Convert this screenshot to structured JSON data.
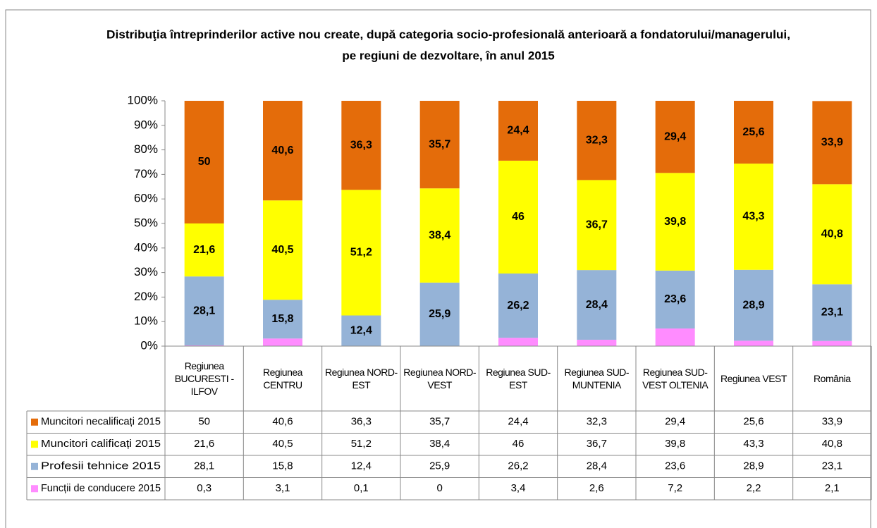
{
  "chart_data": {
    "type": "stacked_bar",
    "title": "Distribuţia întreprinderilor active nou create, după categoria socio-profesională anterioară a fondatorului/managerului,",
    "subtitle": "pe regiuni de dezvoltare, în anul 2015",
    "categories": [
      "Regiunea BUCURESTI - ILFOV",
      "Regiunea CENTRU",
      "Regiunea NORD-EST",
      "Regiunea NORD-VEST",
      "Regiunea SUD-EST",
      "Regiunea SUD-MUNTENIA",
      "Regiunea SUD-VEST OLTENIA",
      "Regiunea VEST",
      "România"
    ],
    "series": [
      {
        "name": "Muncitori necalificați 2015",
        "color": "#e46c0a",
        "values": [
          50,
          40.6,
          36.3,
          35.7,
          24.4,
          32.3,
          29.4,
          25.6,
          33.9
        ],
        "value_labels": [
          "50",
          "40,6",
          "36,3",
          "35,7",
          "24,4",
          "32,3",
          "29,4",
          "25,6",
          "33,9"
        ]
      },
      {
        "name": "Muncitori calificați 2015",
        "color": "#ffff00",
        "values": [
          21.6,
          40.5,
          51.2,
          38.4,
          46,
          36.7,
          39.8,
          43.3,
          40.8
        ],
        "value_labels": [
          "21,6",
          "40,5",
          "51,2",
          "38,4",
          "46",
          "36,7",
          "39,8",
          "43,3",
          "40,8"
        ]
      },
      {
        "name": "Profesii tehnice 2015",
        "color": "#95b3d7",
        "values": [
          28.1,
          15.8,
          12.4,
          25.9,
          26.2,
          28.4,
          23.6,
          28.9,
          23.1
        ],
        "value_labels": [
          "28,1",
          "15,8",
          "12,4",
          "25,9",
          "26,2",
          "28,4",
          "23,6",
          "28,9",
          "23,1"
        ]
      },
      {
        "name": "Funcții de conducere 2015",
        "color": "#ff8cff",
        "values": [
          0.3,
          3.1,
          0.1,
          0,
          3.4,
          2.6,
          7.2,
          2.2,
          2.1
        ],
        "value_labels": [
          "0,3",
          "3,1",
          "0,1",
          "0",
          "3,4",
          "2,6",
          "7,2",
          "2,2",
          "2,1"
        ]
      }
    ],
    "ylim": [
      0,
      100
    ],
    "yticks": [
      {
        "value": 0,
        "label": "0%"
      },
      {
        "value": 10,
        "label": "10%"
      },
      {
        "value": 20,
        "label": "20%"
      },
      {
        "value": 30,
        "label": "30%"
      },
      {
        "value": 40,
        "label": "40%"
      },
      {
        "value": 50,
        "label": "50%"
      },
      {
        "value": 60,
        "label": "60%"
      },
      {
        "value": 70,
        "label": "70%"
      },
      {
        "value": 80,
        "label": "80%"
      },
      {
        "value": 90,
        "label": "90%"
      },
      {
        "value": 100,
        "label": "100%"
      }
    ]
  }
}
